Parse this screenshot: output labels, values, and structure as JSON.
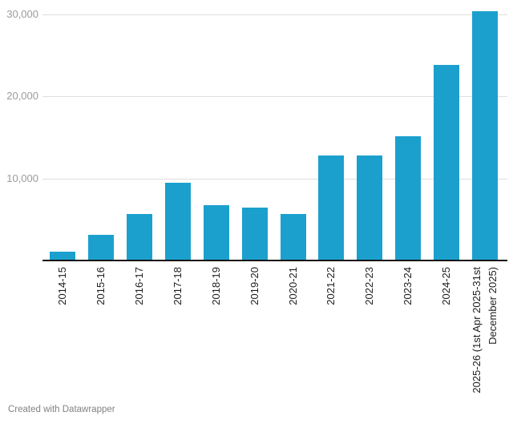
{
  "chart_data": {
    "type": "bar",
    "title": "",
    "xlabel": "",
    "ylabel": "",
    "categories": [
      "2014-15",
      "2015-16",
      "2016-17",
      "2017-18",
      "2018-19",
      "2019-20",
      "2020-21",
      "2021-22",
      "2022-23",
      "2023-24",
      "2024-25",
      "2025-26 (1st Apr 2025-31st\nDecember 2025)"
    ],
    "values": [
      1100,
      3100,
      5700,
      9500,
      6700,
      6450,
      5700,
      12750,
      12800,
      15100,
      23800,
      30300
    ],
    "ylim": [
      0,
      30000
    ],
    "y_ticks": [
      {
        "value": 10000,
        "label": "10,000"
      },
      {
        "value": 20000,
        "label": "20,000"
      },
      {
        "value": 30000,
        "label": "30,000"
      }
    ],
    "grid": "horizontal",
    "legend_position": "none",
    "x_label_rotation": -90,
    "bar_color": "#1ba0ce"
  },
  "footer": {
    "credit": "Created with Datawrapper"
  },
  "colors": {
    "bar": "#1ba0ce",
    "gridline": "#dedede",
    "axis_line": "#141414",
    "y_tick_text": "#9b9b9b",
    "x_tick_text": "#1d1d1d",
    "credit_text": "#828282",
    "background": "#ffffff"
  }
}
